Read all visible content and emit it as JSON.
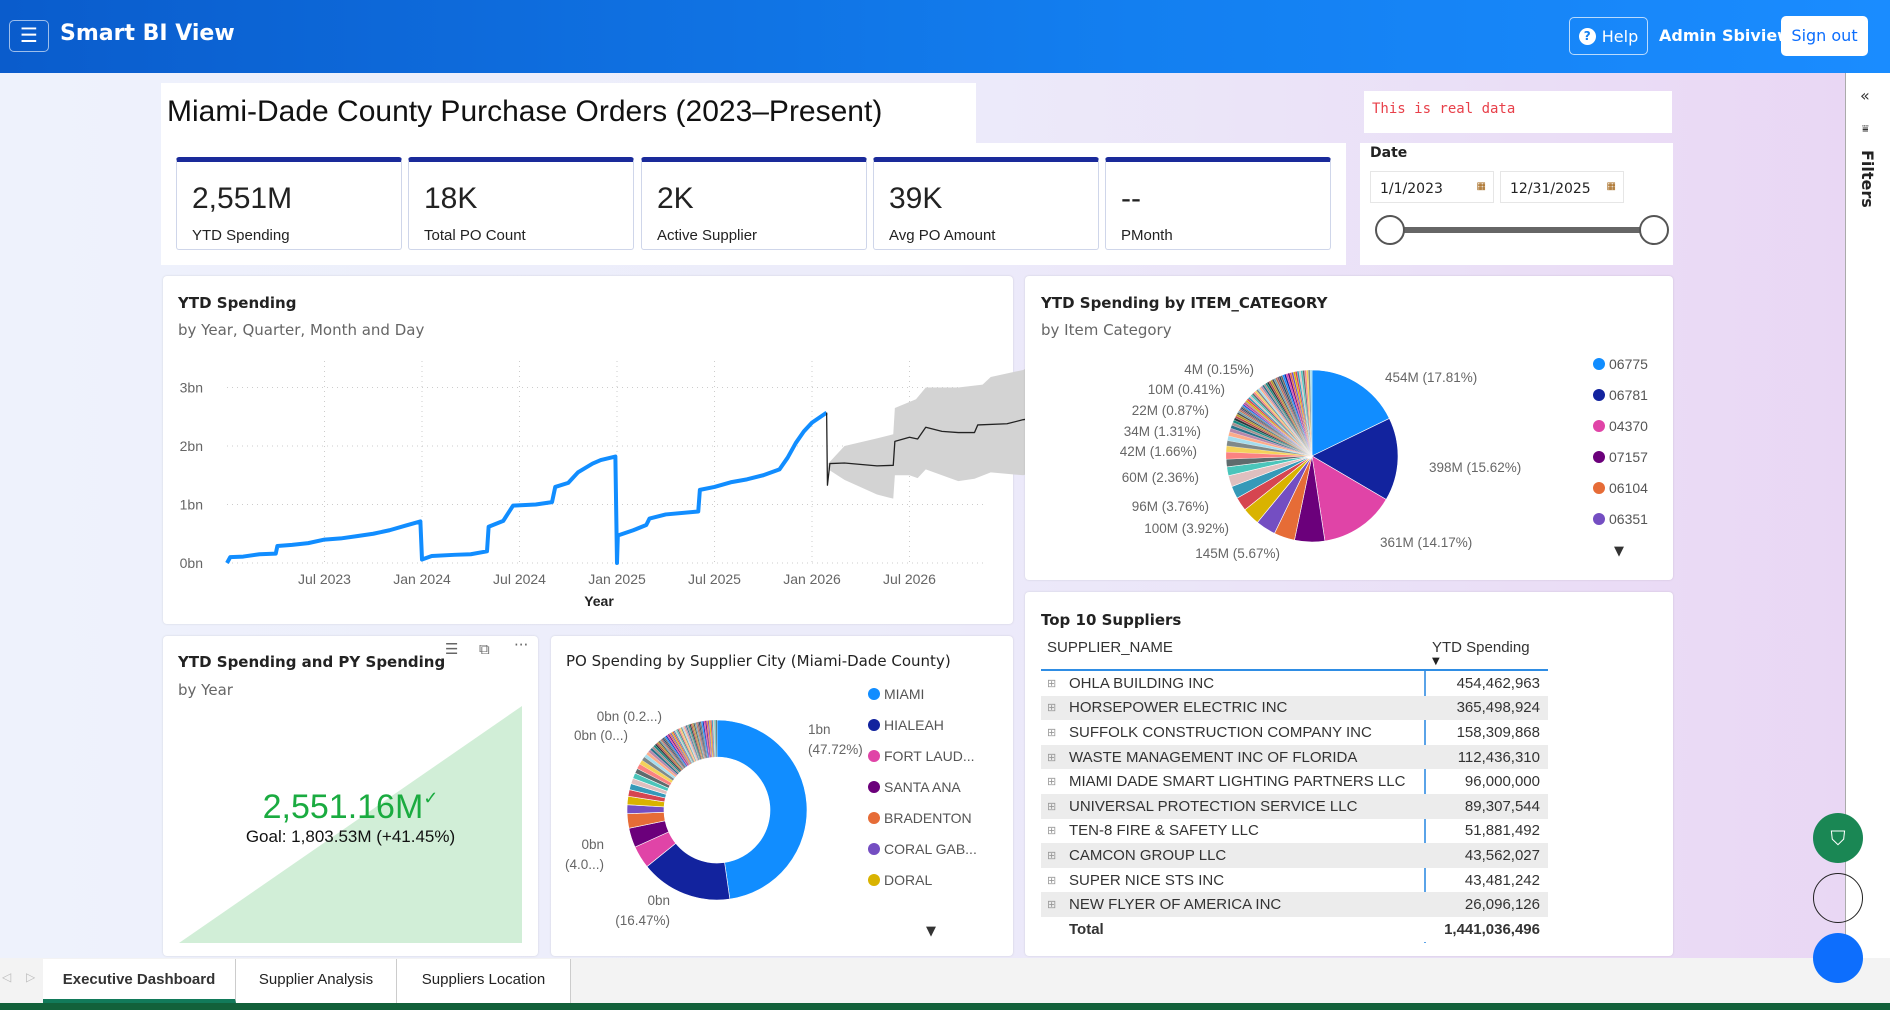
{
  "header": {
    "menu_icon": "hamburger-icon",
    "app_title": "Smart BI View",
    "help_label": "Help",
    "user_name": "Admin Sbiview",
    "signout_label": "Sign out"
  },
  "page_title": "Miami-Dade County Purchase Orders (2023–Present)",
  "notice": "This is real data",
  "kpis": [
    {
      "value": "2,551M",
      "label": "YTD Spending"
    },
    {
      "value": "18K",
      "label": "Total PO Count"
    },
    {
      "value": "2K",
      "label": "Active Supplier"
    },
    {
      "value": "39K",
      "label": "Avg PO Amount"
    },
    {
      "value": "--",
      "label": "PMonth"
    }
  ],
  "date_filter": {
    "label": "Date",
    "start": "1/1/2023",
    "end": "12/31/2025",
    "range_fraction": [
      0,
      1
    ]
  },
  "filters_pane": {
    "label": "Filters",
    "collapse_icon": "«"
  },
  "line_card": {
    "title": "YTD Spending",
    "subtitle": "by Year, Quarter, Month and Day"
  },
  "pie_card": {
    "title": "YTD Spending by ITEM_CATEGORY",
    "subtitle": "by Item Category"
  },
  "gauge_card": {
    "title": "YTD Spending and PY Spending",
    "subtitle": "by Year",
    "value": "2,551.16M",
    "check": "✓",
    "goal": "Goal: 1,803.53M (+41.45%)",
    "value_color": "#1AAB40"
  },
  "donut_card": {
    "title": "PO Spending by Supplier City (Miami-Dade County)"
  },
  "table": {
    "title": "Top 10 Suppliers",
    "columns": [
      "SUPPLIER_NAME",
      "YTD Spending"
    ],
    "rows": [
      [
        "OHLA BUILDING INC",
        "454,462,963"
      ],
      [
        "HORSEPOWER ELECTRIC INC",
        "365,498,924"
      ],
      [
        "SUFFOLK CONSTRUCTION COMPANY INC",
        "158,309,868"
      ],
      [
        "WASTE MANAGEMENT INC OF FLORIDA",
        "112,436,310"
      ],
      [
        "MIAMI DADE SMART LIGHTING PARTNERS LLC",
        "96,000,000"
      ],
      [
        "UNIVERSAL PROTECTION SERVICE LLC",
        "89,307,544"
      ],
      [
        "TEN-8 FIRE & SAFETY LLC",
        "51,881,492"
      ],
      [
        "CAMCON GROUP LLC",
        "43,562,027"
      ],
      [
        "SUPER NICE STS INC",
        "43,481,242"
      ],
      [
        "NEW FLYER OF AMERICA INC",
        "26,096,126"
      ]
    ],
    "total_label": "Total",
    "total_value": "1,441,036,496"
  },
  "tabs": [
    {
      "label": "Executive Dashboard",
      "active": true
    },
    {
      "label": "Supplier Analysis",
      "active": false
    },
    {
      "label": "Suppliers Location",
      "active": false
    }
  ],
  "colors": {
    "accent": "#118DFF",
    "kpi_border": "#1A2A9A",
    "fab_green": "#1A8754",
    "fab_blue": "#0D6EFD"
  },
  "palette": [
    "#118DFF",
    "#12239E",
    "#E044A7",
    "#6B007B",
    "#E66C37",
    "#744EC2",
    "#D9B300",
    "#D64550",
    "#3599B8",
    "#DFBFBF",
    "#4AC5BB",
    "#5F6B6D",
    "#FB8281",
    "#F4D25A",
    "#7F898A",
    "#A4DDEE",
    "#FDAB89",
    "#B687AC",
    "#28738A",
    "#A78F8F",
    "#168980",
    "#293537",
    "#BB4A4A",
    "#B59525",
    "#475052",
    "#6A9FB0",
    "#BD7150",
    "#7B4F71",
    "#1B4D5C",
    "#706060"
  ],
  "chart_data": [
    {
      "type": "line",
      "title": "YTD Spending",
      "subtitle": "by Year, Quarter, Month and Day",
      "xlabel": "Year",
      "ylabel": "",
      "x_unit": "months since Jan 2023",
      "ylim": [
        0,
        3.45
      ],
      "x_ticks": [
        {
          "m": 6,
          "label": "Jul 2023"
        },
        {
          "m": 12,
          "label": "Jan 2024"
        },
        {
          "m": 18,
          "label": "Jul 2024"
        },
        {
          "m": 24,
          "label": "Jan 2025"
        },
        {
          "m": 30,
          "label": "Jul 2025"
        },
        {
          "m": 36,
          "label": "Jan 2026"
        },
        {
          "m": 42,
          "label": "Jul 2026"
        }
      ],
      "y_ticks": [
        {
          "v": 0,
          "label": "0bn"
        },
        {
          "v": 1,
          "label": "1bn"
        },
        {
          "v": 2,
          "label": "2bn"
        },
        {
          "v": 3,
          "label": "3bn"
        }
      ],
      "series": [
        {
          "name": "YTD Spending",
          "color": "#118DFF",
          "points": [
            [
              0,
              0
            ],
            [
              0.2,
              0.1
            ],
            [
              1,
              0.11
            ],
            [
              2,
              0.15
            ],
            [
              3,
              0.16
            ],
            [
              3.1,
              0.29
            ],
            [
              4,
              0.31
            ],
            [
              5,
              0.34
            ],
            [
              6,
              0.4
            ],
            [
              7,
              0.42
            ],
            [
              8,
              0.46
            ],
            [
              9,
              0.5
            ],
            [
              10,
              0.56
            ],
            [
              11,
              0.64
            ],
            [
              11.9,
              0.71
            ],
            [
              12,
              0.06
            ],
            [
              12.6,
              0.12
            ],
            [
              14,
              0.14
            ],
            [
              15,
              0.15
            ],
            [
              16,
              0.2
            ],
            [
              16.1,
              0.62
            ],
            [
              17,
              0.72
            ],
            [
              17.6,
              0.98
            ],
            [
              19,
              1.0
            ],
            [
              20,
              1.04
            ],
            [
              20.2,
              1.3
            ],
            [
              21,
              1.37
            ],
            [
              21.6,
              1.55
            ],
            [
              22.5,
              1.7
            ],
            [
              23,
              1.76
            ],
            [
              23.9,
              1.82
            ],
            [
              24,
              0
            ],
            [
              24.05,
              0.47
            ],
            [
              25,
              0.56
            ],
            [
              25.8,
              0.65
            ],
            [
              26,
              0.76
            ],
            [
              27,
              0.83
            ],
            [
              29,
              0.88
            ],
            [
              29.1,
              1.25
            ],
            [
              30,
              1.3
            ],
            [
              31,
              1.38
            ],
            [
              32,
              1.43
            ],
            [
              33,
              1.5
            ],
            [
              34,
              1.6
            ],
            [
              34.5,
              1.8
            ],
            [
              35,
              2.05
            ],
            [
              35.5,
              2.25
            ],
            [
              36,
              2.4
            ],
            [
              36.9,
              2.57
            ]
          ]
        },
        {
          "name": "Forecast",
          "color": "#222222",
          "points": [
            [
              36.9,
              2.57
            ],
            [
              36.95,
              1.33
            ],
            [
              37.1,
              1.7
            ],
            [
              38,
              1.71
            ],
            [
              40,
              1.66
            ],
            [
              41,
              1.67
            ],
            [
              41.1,
              2.08
            ],
            [
              42,
              2.15
            ],
            [
              42.5,
              2.12
            ],
            [
              43,
              2.32
            ],
            [
              44,
              2.25
            ],
            [
              45,
              2.23
            ],
            [
              46,
              2.23
            ],
            [
              46.2,
              2.36
            ],
            [
              48,
              2.38
            ],
            [
              49,
              2.45
            ],
            [
              49.5,
              2.47
            ]
          ]
        }
      ],
      "forecast_band": {
        "color": "#D3D3D3",
        "upper": [
          [
            37,
            1.7
          ],
          [
            38,
            2.0
          ],
          [
            40,
            2.13
          ],
          [
            41,
            2.2
          ],
          [
            41.1,
            2.65
          ],
          [
            42.4,
            2.8
          ],
          [
            43,
            3.0
          ],
          [
            45,
            3.0
          ],
          [
            46.5,
            3.05
          ],
          [
            47,
            3.18
          ],
          [
            49,
            3.3
          ],
          [
            49.5,
            3.38
          ]
        ],
        "lower": [
          [
            37,
            1.6
          ],
          [
            38,
            1.42
          ],
          [
            40,
            1.17
          ],
          [
            41,
            1.1
          ],
          [
            41.1,
            1.5
          ],
          [
            42,
            1.5
          ],
          [
            42.5,
            1.45
          ],
          [
            43,
            1.6
          ],
          [
            45,
            1.4
          ],
          [
            46,
            1.44
          ],
          [
            47,
            1.55
          ],
          [
            49,
            1.5
          ],
          [
            49.5,
            1.55
          ]
        ]
      }
    },
    {
      "type": "pie",
      "title": "YTD Spending by ITEM_CATEGORY",
      "subtitle": "by Item Category",
      "legend": [
        "06775",
        "06781",
        "04370",
        "07157",
        "06104",
        "06351"
      ],
      "legend_position": "right",
      "values_pct": [
        17.81,
        15.62,
        14.17,
        5.67,
        3.92,
        3.76,
        3.3,
        2.6,
        2.36,
        2.1,
        1.66,
        1.45,
        1.31,
        1.15,
        1.0,
        0.87,
        0.8,
        0.7,
        0.6,
        0.55,
        0.5,
        0.45,
        0.41,
        0.38,
        0.35,
        0.32,
        0.3,
        0.28,
        0.26,
        0.24,
        0.22,
        0.2,
        0.18,
        0.17,
        0.16,
        0.15
      ],
      "small_slices": 40,
      "labels": [
        "454M (17.81%)",
        "398M (15.62%)",
        "361M (14.17%)",
        "145M (5.67%)",
        "100M (3.92%)",
        "96M (3.76%)",
        "60M (2.36%)",
        "42M (1.66%)",
        "34M (1.31%)",
        "22M (0.87%)",
        "10M (0.41%)",
        "4M (0.15%)"
      ]
    },
    {
      "type": "donut",
      "title": "PO Spending by Supplier City (Miami-Dade County)",
      "legend": [
        "MIAMI",
        "HIALEAH",
        "FORT LAUD...",
        "SANTA ANA",
        "BRADENTON",
        "CORAL GAB...",
        "DORAL"
      ],
      "legend_position": "right",
      "values_pct": [
        47.72,
        16.47,
        4.05,
        3.5,
        2.6,
        1.6,
        1.5,
        1.2,
        1.1,
        1.0,
        1.0,
        0.9,
        0.9,
        0.8,
        0.7,
        0.6,
        0.55,
        0.5,
        0.45,
        0.4,
        0.35,
        0.3,
        0.28,
        0.26,
        0.24,
        0.22,
        0.2
      ],
      "small_slices": 45,
      "labels": [
        [
          "1bn",
          "(47.72%)"
        ],
        [
          "0bn",
          "(16.47%)"
        ],
        [
          "0bn",
          "(4.0...)"
        ],
        [
          "0bn (0...)"
        ],
        [
          "0bn (0.2...)"
        ]
      ]
    }
  ]
}
